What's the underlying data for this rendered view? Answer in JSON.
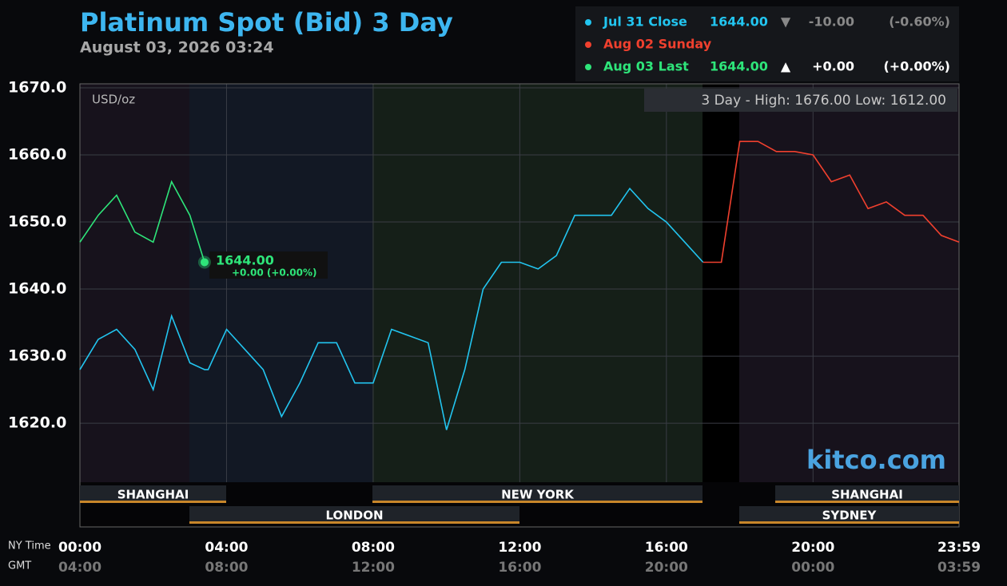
{
  "chart_data": {
    "type": "line",
    "title": "Platinum Spot (Bid) 3 Day",
    "subtitle": "August 03, 2026 03:24",
    "unit_label": "USD/oz",
    "range_note": "3 Day - High: 1676.00  Low: 1612.00",
    "watermark": "kitco.com",
    "x_axis_label": "NY Time",
    "x2_axis_label": "GMT",
    "x": [
      "00:00",
      "00:30",
      "01:00",
      "01:30",
      "02:00",
      "02:30",
      "03:00",
      "03:24",
      "03:30",
      "04:00",
      "04:30",
      "05:00",
      "05:30",
      "06:00",
      "06:30",
      "07:00",
      "07:30",
      "08:00",
      "08:30",
      "09:00",
      "09:30",
      "10:00",
      "10:30",
      "11:00",
      "11:30",
      "12:00",
      "12:30",
      "13:00",
      "13:30",
      "14:00",
      "14:30",
      "15:00",
      "15:30",
      "16:00",
      "16:30",
      "17:00",
      "17:30",
      "18:00",
      "18:30",
      "19:00",
      "19:30",
      "20:00",
      "20:30",
      "21:00",
      "21:30",
      "22:00",
      "22:30",
      "23:00",
      "23:30",
      "23:59"
    ],
    "xlim": [
      "00:00",
      "23:59"
    ],
    "xticks": [
      "00:00",
      "04:00",
      "08:00",
      "12:00",
      "16:00",
      "20:00",
      "23:59"
    ],
    "x2ticks": [
      "04:00",
      "08:00",
      "12:00",
      "16:00",
      "20:00",
      "00:00",
      "03:59"
    ],
    "ylim": [
      1611.2,
      1670.6
    ],
    "yticks": [
      {
        "value": 1620,
        "label": "1620.0"
      },
      {
        "value": 1630,
        "label": "1630.0"
      },
      {
        "value": 1640,
        "label": "1640.0"
      },
      {
        "value": 1650,
        "label": "1650.0"
      },
      {
        "value": 1660,
        "label": "1660.0"
      },
      {
        "value": 1670,
        "label": "1670.0"
      }
    ],
    "grid": true,
    "sessions": [
      "SHANGHAI",
      "LONDON",
      "NEW YORK",
      "SHANGHAI",
      "SYDNEY"
    ],
    "series": [
      {
        "name": "Jul 31 Close",
        "color": "#22c5f0",
        "legend_price": "1644.00",
        "legend_arrow": "▼",
        "legend_change": "-10.00",
        "legend_pct": "(-0.60%)",
        "values": [
          1628,
          1632.5,
          1634,
          1631,
          1625,
          1636,
          1629,
          1628,
          1628,
          1634,
          1631,
          1628,
          1621,
          1626,
          1632,
          1632,
          1626,
          1626,
          1634,
          1633,
          1632,
          1619,
          1628,
          1640,
          1644,
          1644,
          1643,
          1645,
          1651,
          1651,
          1651,
          1655,
          1652,
          1650,
          1647,
          1644,
          null,
          null,
          null,
          null,
          null,
          null,
          null,
          null,
          null,
          null,
          null,
          null,
          null,
          null
        ]
      },
      {
        "name": "Aug 02 Sunday",
        "color": "#f0402e",
        "values": [
          null,
          null,
          null,
          null,
          null,
          null,
          null,
          null,
          null,
          null,
          null,
          null,
          null,
          null,
          null,
          null,
          null,
          null,
          null,
          null,
          null,
          null,
          null,
          null,
          null,
          null,
          null,
          null,
          null,
          null,
          null,
          null,
          null,
          null,
          null,
          1644,
          1644,
          1662,
          1662,
          1660.5,
          1660.5,
          1660,
          1656,
          1657,
          1652,
          1653,
          1651,
          1651,
          1648,
          1647
        ]
      },
      {
        "name": "Aug 03 Last",
        "color": "#2ee57a",
        "legend_price": "1644.00",
        "legend_arrow": "▲",
        "legend_change": "+0.00",
        "legend_pct": "(+0.00%)",
        "values": [
          1647,
          1651,
          1654,
          1648.5,
          1647,
          1656,
          1651,
          1644,
          null,
          null,
          null,
          null,
          null,
          null,
          null,
          null,
          null,
          null,
          null,
          null,
          null,
          null,
          null,
          null,
          null,
          null,
          null,
          null,
          null,
          null,
          null,
          null,
          null,
          null,
          null,
          null,
          null,
          null,
          null,
          null,
          null,
          null,
          null,
          null,
          null,
          null,
          null,
          null,
          null,
          null
        ]
      }
    ],
    "last_point_label": "1644.00",
    "last_point_change": "+0.00 (+0.00%)"
  }
}
